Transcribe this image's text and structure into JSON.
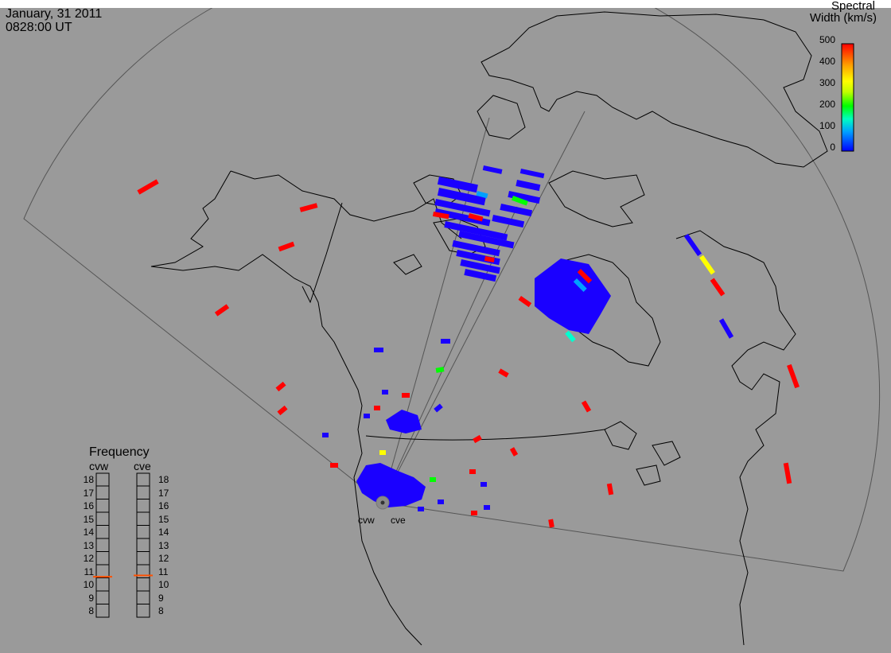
{
  "header": {
    "date": "January, 31 2011",
    "time": "0828:00 UT"
  },
  "colorbar": {
    "title_line1": "Spectral",
    "title_line2": "Width (km/s)",
    "ticks": [
      "500",
      "400",
      "300",
      "200",
      "100",
      "0"
    ],
    "range": [
      0,
      500
    ],
    "colors": [
      "#0000ff",
      "#00a0ff",
      "#00ffc0",
      "#00ff00",
      "#c0ff00",
      "#ffff00",
      "#ffa000",
      "#ff0000"
    ]
  },
  "frequency": {
    "title": "Frequency",
    "radars": [
      "cvw",
      "cve"
    ],
    "ticks": [
      "18",
      "17",
      "16",
      "15",
      "14",
      "13",
      "12",
      "11",
      "10",
      "9",
      "8"
    ],
    "range_mhz": [
      8,
      18
    ],
    "values_mhz": [
      10.6,
      10.7
    ],
    "marker_color": "#ff5000"
  },
  "sites": {
    "left": "cvw",
    "right": "cve"
  },
  "colors": {
    "background": "#9a9a9a",
    "coast": "#000000",
    "fov": "#555555"
  }
}
